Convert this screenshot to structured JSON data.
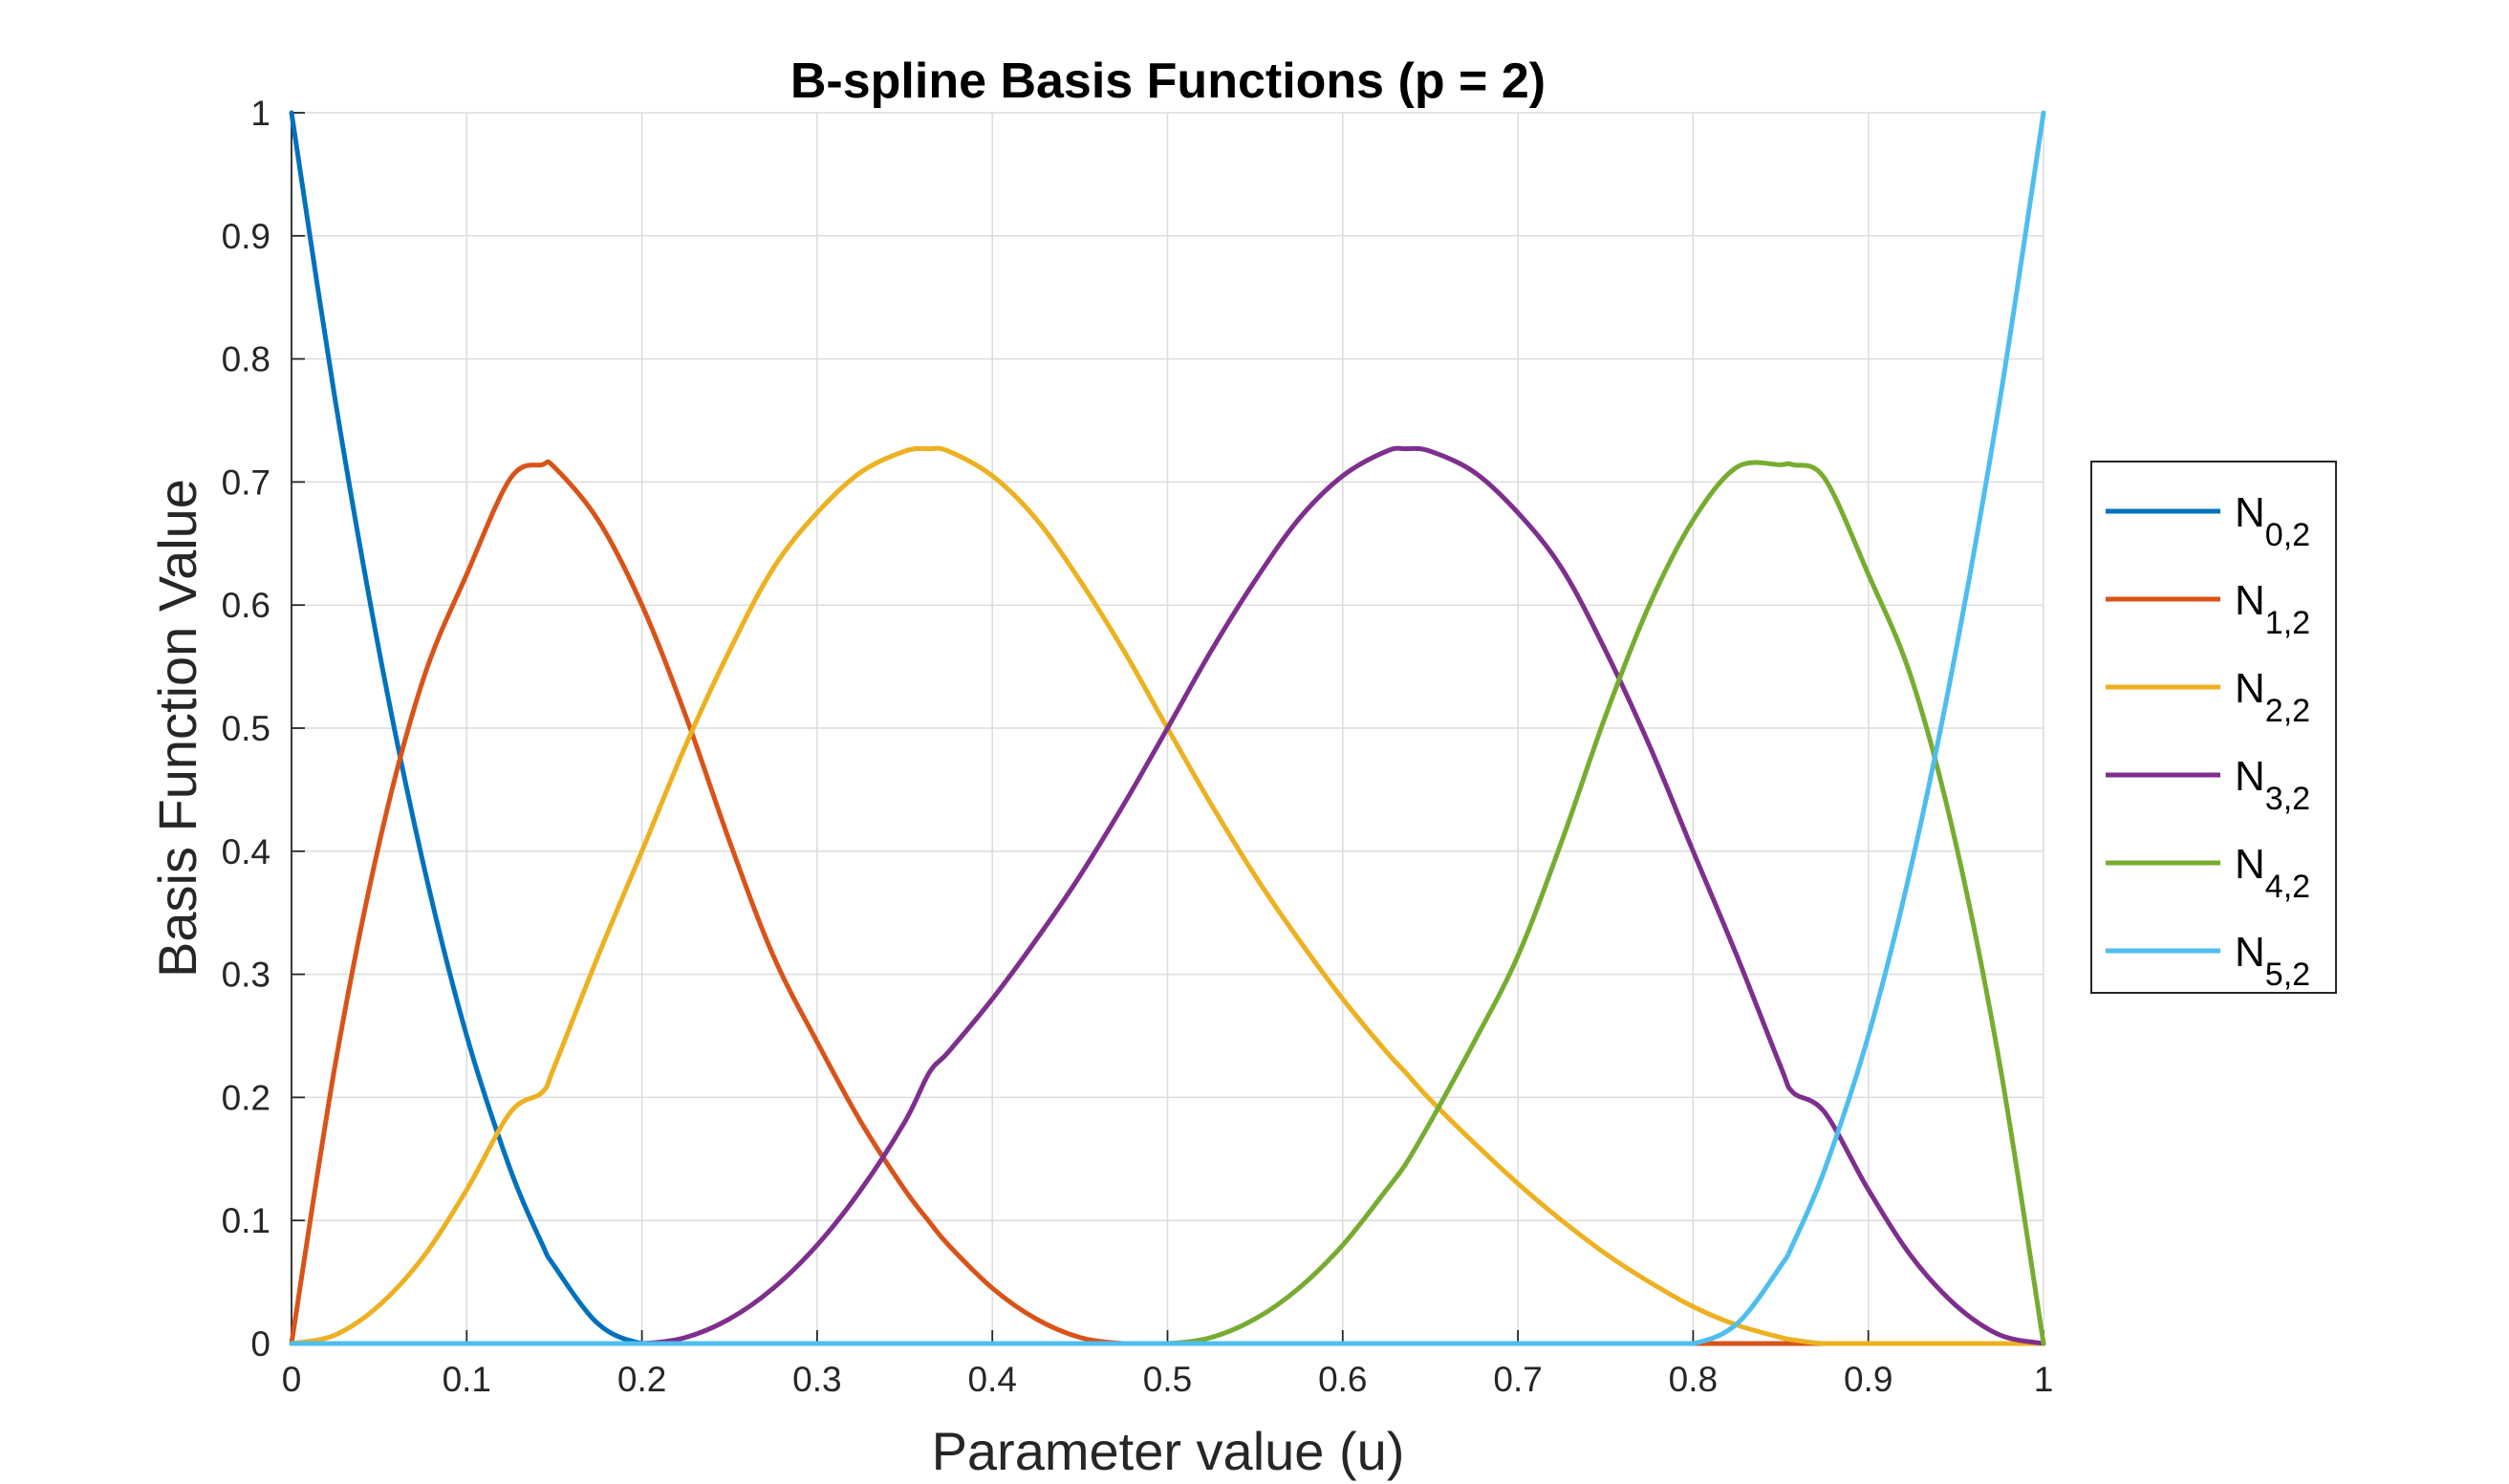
{
  "chart_data": {
    "type": "line",
    "title": "B-spline Basis Functions (p = 2)",
    "xlabel": "Parameter value (u)",
    "ylabel": "Basis Function Value",
    "xlim": [
      0,
      1
    ],
    "ylim": [
      0,
      1
    ],
    "grid": true,
    "legend_position": "right-center",
    "x_ticks": [
      "0",
      "0.1",
      "0.2",
      "0.3",
      "0.4",
      "0.5",
      "0.6",
      "0.7",
      "0.8",
      "0.9",
      "1"
    ],
    "y_ticks": [
      "0",
      "0.1",
      "0.2",
      "0.3",
      "0.4",
      "0.5",
      "0.6",
      "0.7",
      "0.8",
      "0.9",
      "1"
    ],
    "x": [
      0,
      0.025,
      0.05,
      0.075,
      0.1,
      0.125,
      0.143,
      0.15,
      0.175,
      0.2,
      0.225,
      0.25,
      0.275,
      0.3,
      0.325,
      0.35,
      0.364,
      0.375,
      0.4,
      0.425,
      0.45,
      0.475,
      0.5,
      0.525,
      0.55,
      0.575,
      0.6,
      0.625,
      0.636,
      0.65,
      0.675,
      0.7,
      0.725,
      0.75,
      0.775,
      0.8,
      0.825,
      0.85,
      0.857,
      0.875,
      0.9,
      0.925,
      0.95,
      0.975,
      1
    ],
    "series": [
      {
        "name_main": "N",
        "name_sub": "0,2",
        "color": "#0072BD",
        "values": [
          1,
          0.766,
          0.563,
          0.391,
          0.25,
          0.141,
          0.081,
          0.063,
          0.016,
          0,
          0,
          0,
          0,
          0,
          0,
          0,
          0,
          0,
          0,
          0,
          0,
          0,
          0,
          0,
          0,
          0,
          0,
          0,
          0,
          0,
          0,
          0,
          0,
          0,
          0,
          0,
          0,
          0,
          0,
          0,
          0,
          0,
          0,
          0,
          0
        ]
      },
      {
        "name_main": "N",
        "name_sub": "1,2",
        "color": "#D95319",
        "values": [
          0,
          0.227,
          0.406,
          0.539,
          0.625,
          0.703,
          0.714,
          0.712,
          0.669,
          0.6,
          0.51,
          0.408,
          0.315,
          0.245,
          0.18,
          0.125,
          0.099,
          0.08,
          0.045,
          0.02,
          0.005,
          0,
          0,
          0,
          0,
          0,
          0,
          0,
          0,
          0,
          0,
          0,
          0,
          0,
          0,
          0,
          0,
          0,
          0,
          0,
          0,
          0,
          0,
          0,
          0
        ]
      },
      {
        "name_main": "N",
        "name_sub": "2,2",
        "color": "#EDB120",
        "values": [
          0,
          0.007,
          0.031,
          0.07,
          0.125,
          0.188,
          0.204,
          0.225,
          0.315,
          0.4,
          0.486,
          0.563,
          0.63,
          0.675,
          0.708,
          0.725,
          0.727,
          0.725,
          0.705,
          0.67,
          0.62,
          0.563,
          0.5,
          0.438,
          0.38,
          0.328,
          0.28,
          0.237,
          0.22,
          0.198,
          0.163,
          0.13,
          0.1,
          0.073,
          0.05,
          0.03,
          0.015,
          0.005,
          0.003,
          0,
          0,
          0,
          0,
          0,
          0
        ]
      },
      {
        "name_main": "N",
        "name_sub": "3,2",
        "color": "#7E2F8E",
        "values": [
          0,
          0,
          0,
          0,
          0,
          0,
          0,
          0,
          0,
          0,
          0.005,
          0.02,
          0.045,
          0.08,
          0.125,
          0.18,
          0.22,
          0.237,
          0.28,
          0.328,
          0.38,
          0.438,
          0.5,
          0.563,
          0.62,
          0.67,
          0.705,
          0.725,
          0.727,
          0.725,
          0.708,
          0.675,
          0.63,
          0.563,
          0.486,
          0.4,
          0.315,
          0.225,
          0.204,
          0.188,
          0.125,
          0.07,
          0.031,
          0.007,
          0
        ]
      },
      {
        "name_main": "N",
        "name_sub": "4,2",
        "color": "#77AC30",
        "values": [
          0,
          0,
          0,
          0,
          0,
          0,
          0,
          0,
          0,
          0,
          0,
          0,
          0,
          0,
          0,
          0,
          0,
          0,
          0,
          0,
          0,
          0,
          0,
          0.005,
          0.02,
          0.045,
          0.08,
          0.125,
          0.146,
          0.18,
          0.245,
          0.315,
          0.408,
          0.51,
          0.6,
          0.669,
          0.712,
          0.714,
          0.714,
          0.703,
          0.625,
          0.539,
          0.406,
          0.227,
          0
        ]
      },
      {
        "name_main": "N",
        "name_sub": "5,2",
        "color": "#4DBEEE",
        "values": [
          0,
          0,
          0,
          0,
          0,
          0,
          0,
          0,
          0,
          0,
          0,
          0,
          0,
          0,
          0,
          0,
          0,
          0,
          0,
          0,
          0,
          0,
          0,
          0,
          0,
          0,
          0,
          0,
          0,
          0,
          0,
          0,
          0,
          0,
          0,
          0,
          0.016,
          0.063,
          0.081,
          0.141,
          0.25,
          0.391,
          0.563,
          0.766,
          1
        ]
      }
    ]
  }
}
